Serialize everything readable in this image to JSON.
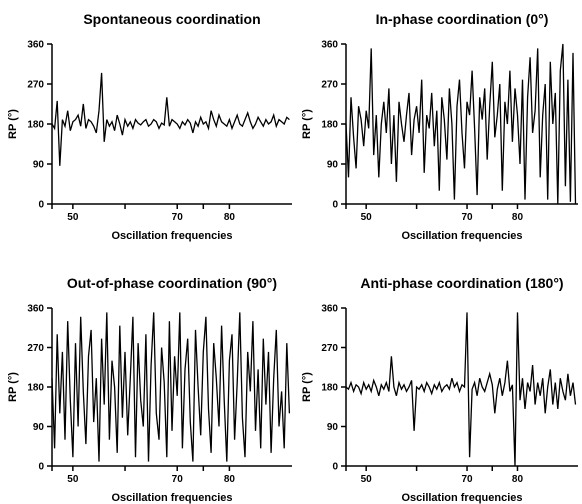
{
  "chart_data": [
    {
      "type": "line",
      "title": "Spontaneous coordination",
      "xlabel": "Oscillation frequencies",
      "ylabel": "RP (°)",
      "yticks": [
        0,
        90,
        180,
        270,
        360
      ],
      "xticks": [
        50,
        70,
        80
      ],
      "xlim": [
        46,
        92
      ],
      "ylim": [
        0,
        360
      ],
      "color": "#000000",
      "series": [
        {
          "x": [
            46,
            46.5,
            47,
            47.5,
            48,
            48.5,
            49,
            49.5,
            50,
            50.5,
            51,
            51.5,
            52,
            52.5,
            53,
            53.5,
            54,
            54.5,
            55,
            55.5,
            56,
            56.5,
            57,
            57.5,
            58,
            58.5,
            59,
            59.5,
            60,
            60.5,
            61,
            61.5,
            62,
            62.5,
            63,
            63.5,
            64,
            64.5,
            65,
            65.5,
            66,
            66.5,
            67,
            67.5,
            68,
            68.5,
            69,
            69.5,
            70,
            70.5,
            71,
            71.5,
            72,
            72.5,
            73,
            73.5,
            74,
            74.5,
            75,
            75.5,
            76,
            76.5,
            77,
            77.5,
            78,
            78.5,
            79,
            79.5,
            80,
            80.5,
            81,
            81.5,
            82,
            82.5,
            83,
            83.5,
            84,
            84.5,
            85,
            85.5,
            86,
            86.5,
            87,
            87.5,
            88,
            88.5,
            89,
            89.5,
            90,
            90.5,
            91,
            91.5
          ],
          "y": [
            180,
            170,
            232,
            86,
            190,
            175,
            210,
            165,
            185,
            190,
            200,
            175,
            225,
            170,
            190,
            185,
            175,
            160,
            210,
            295,
            140,
            190,
            175,
            185,
            165,
            200,
            180,
            155,
            190,
            175,
            185,
            170,
            190,
            182,
            178,
            185,
            190,
            175,
            180,
            190,
            185,
            170,
            182,
            178,
            240,
            175,
            190,
            185,
            180,
            170,
            185,
            178,
            190,
            182,
            160,
            185,
            175,
            195,
            180,
            185,
            170,
            210,
            190,
            175,
            200,
            185,
            180,
            175,
            190,
            170,
            185,
            200,
            180,
            175,
            190,
            205,
            185,
            170,
            180,
            195,
            185,
            175,
            190,
            180,
            185,
            200,
            175,
            190,
            185,
            180,
            195,
            190
          ]
        }
      ]
    },
    {
      "type": "line",
      "title": "In-phase coordination (0°)",
      "xlabel": "Oscillation frequencies",
      "ylabel": "RP (°)",
      "yticks": [
        0,
        90,
        180,
        270,
        360
      ],
      "xticks": [
        50,
        70,
        80
      ],
      "xlim": [
        46,
        92
      ],
      "ylim": [
        0,
        360
      ],
      "color": "#000000",
      "series": [
        {
          "x": [
            46,
            46.5,
            47,
            47.5,
            48,
            48.5,
            49,
            49.5,
            50,
            50.5,
            51,
            51.5,
            52,
            52.5,
            53,
            53.5,
            54,
            54.5,
            55,
            55.5,
            56,
            56.5,
            57,
            57.5,
            58,
            58.5,
            59,
            59.5,
            60,
            60.5,
            61,
            61.5,
            62,
            62.5,
            63,
            63.5,
            64,
            64.5,
            65,
            65.5,
            66,
            66.5,
            67,
            67.5,
            68,
            68.5,
            69,
            69.5,
            70,
            70.5,
            71,
            71.5,
            72,
            72.5,
            73,
            73.5,
            74,
            74.5,
            75,
            75.5,
            76,
            76.5,
            77,
            77.5,
            78,
            78.5,
            79,
            79.5,
            80,
            80.5,
            81,
            81.5,
            82,
            82.5,
            83,
            83.5,
            84,
            84.5,
            85,
            85.5,
            86,
            86.5,
            87,
            87.5,
            88,
            88.5,
            89,
            89.5,
            90,
            90.5,
            91,
            91.5
          ],
          "y": [
            180,
            60,
            240,
            150,
            80,
            220,
            190,
            130,
            210,
            170,
            350,
            110,
            200,
            60,
            180,
            230,
            160,
            260,
            90,
            200,
            50,
            230,
            180,
            140,
            200,
            250,
            110,
            190,
            220,
            160,
            280,
            70,
            200,
            170,
            250,
            130,
            210,
            30,
            240,
            190,
            100,
            260,
            180,
            10,
            220,
            280,
            160,
            80,
            230,
            200,
            300,
            170,
            20,
            240,
            190,
            260,
            100,
            220,
            320,
            150,
            200,
            270,
            30,
            230,
            180,
            300,
            140,
            260,
            200,
            90,
            280,
            10,
            240,
            330,
            160,
            210,
            350,
            60,
            200,
            270,
            10,
            320,
            180,
            250,
            0,
            300,
            360,
            40,
            280,
            5,
            340,
            0
          ]
        }
      ]
    },
    {
      "type": "line",
      "title": "Out-of-phase coordination (90°)",
      "xlabel": "Oscillation frequencies",
      "ylabel": "RP (°)",
      "yticks": [
        0,
        90,
        180,
        270,
        360
      ],
      "xticks": [
        50,
        70,
        80
      ],
      "xlim": [
        46,
        92
      ],
      "ylim": [
        0,
        360
      ],
      "color": "#000000",
      "series": [
        {
          "x": [
            46,
            46.5,
            47,
            47.5,
            48,
            48.5,
            49,
            49.5,
            50,
            50.5,
            51,
            51.5,
            52,
            52.5,
            53,
            53.5,
            54,
            54.5,
            55,
            55.5,
            56,
            56.5,
            57,
            57.5,
            58,
            58.5,
            59,
            59.5,
            60,
            60.5,
            61,
            61.5,
            62,
            62.5,
            63,
            63.5,
            64,
            64.5,
            65,
            65.5,
            66,
            66.5,
            67,
            67.5,
            68,
            68.5,
            69,
            69.5,
            70,
            70.5,
            71,
            71.5,
            72,
            72.5,
            73,
            73.5,
            74,
            74.5,
            75,
            75.5,
            76,
            76.5,
            77,
            77.5,
            78,
            78.5,
            79,
            79.5,
            80,
            80.5,
            81,
            81.5,
            82,
            82.5,
            83,
            83.5,
            84,
            84.5,
            85,
            85.5,
            86,
            86.5,
            87,
            87.5,
            88,
            88.5,
            89,
            89.5,
            90,
            90.5,
            91,
            91.5
          ],
          "y": [
            200,
            40,
            300,
            120,
            260,
            60,
            330,
            150,
            20,
            280,
            90,
            340,
            170,
            50,
            250,
            310,
            100,
            200,
            10,
            290,
            140,
            350,
            60,
            240,
            180,
            30,
            320,
            110,
            260,
            70,
            200,
            340,
            20,
            280,
            150,
            90,
            300,
            10,
            230,
            350,
            120,
            60,
            270,
            190,
            20,
            330,
            80,
            250,
            160,
            350,
            40,
            220,
            290,
            100,
            10,
            310,
            180,
            70,
            260,
            340,
            130,
            30,
            280,
            200,
            90,
            320,
            150,
            10,
            240,
            300,
            60,
            190,
            350,
            110,
            20,
            260,
            170,
            330,
            80,
            220,
            40,
            290,
            140,
            260,
            30,
            200,
            310,
            90,
            170,
            40,
            280,
            120
          ]
        }
      ]
    },
    {
      "type": "line",
      "title": "Anti-phase coordination (180°)",
      "xlabel": "Oscillation frequencies",
      "ylabel": "RP (°)",
      "yticks": [
        0,
        90,
        180,
        270,
        360
      ],
      "xticks": [
        50,
        70,
        80
      ],
      "xlim": [
        46,
        92
      ],
      "ylim": [
        0,
        360
      ],
      "color": "#000000",
      "series": [
        {
          "x": [
            46,
            46.5,
            47,
            47.5,
            48,
            48.5,
            49,
            49.5,
            50,
            50.5,
            51,
            51.5,
            52,
            52.5,
            53,
            53.5,
            54,
            54.5,
            55,
            55.5,
            56,
            56.5,
            57,
            57.5,
            58,
            58.5,
            59,
            59.5,
            60,
            60.5,
            61,
            61.5,
            62,
            62.5,
            63,
            63.5,
            64,
            64.5,
            65,
            65.5,
            66,
            66.5,
            67,
            67.5,
            68,
            68.5,
            69,
            69.5,
            70,
            70.5,
            71,
            71.5,
            72,
            72.5,
            73,
            73.5,
            74,
            74.5,
            75,
            75.5,
            76,
            76.5,
            77,
            77.5,
            78,
            78.5,
            79,
            79.5,
            80,
            80.5,
            81,
            81.5,
            82,
            82.5,
            83,
            83.5,
            84,
            84.5,
            85,
            85.5,
            86,
            86.5,
            87,
            87.5,
            88,
            88.5,
            89,
            89.5,
            90,
            90.5,
            91,
            91.5
          ],
          "y": [
            180,
            175,
            190,
            170,
            185,
            180,
            165,
            190,
            175,
            185,
            170,
            195,
            180,
            160,
            185,
            175,
            190,
            170,
            250,
            180,
            160,
            190,
            175,
            185,
            170,
            180,
            195,
            80,
            180,
            175,
            185,
            170,
            190,
            180,
            165,
            185,
            175,
            190,
            170,
            180,
            185,
            175,
            200,
            180,
            190,
            170,
            185,
            180,
            350,
            20,
            175,
            190,
            160,
            200,
            180,
            170,
            190,
            210,
            185,
            120,
            175,
            200,
            160,
            190,
            240,
            170,
            185,
            0,
            350,
            150,
            200,
            130,
            190,
            170,
            230,
            140,
            190,
            160,
            200,
            120,
            180,
            220,
            140,
            190,
            130,
            200,
            170,
            150,
            210,
            160,
            190,
            140
          ]
        }
      ]
    }
  ]
}
